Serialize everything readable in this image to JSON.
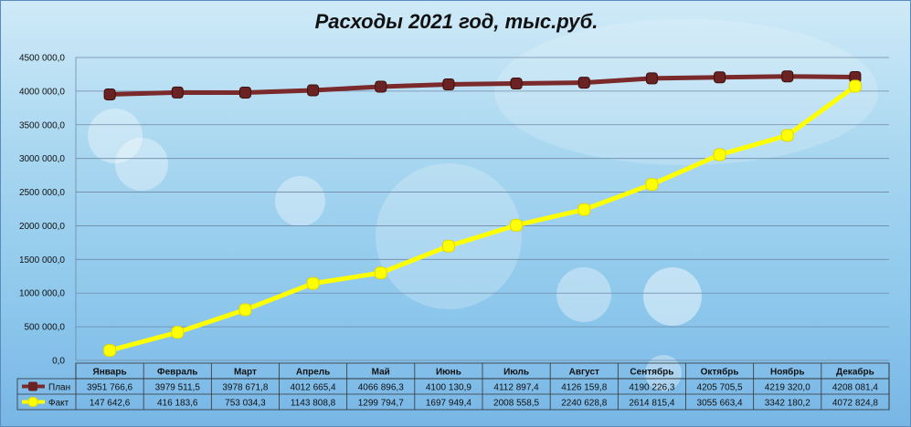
{
  "chart_data": {
    "type": "line",
    "title": "Расходы 2021 год, тыс.руб.",
    "ylim": [
      0,
      4500000
    ],
    "yticks": [
      "0,0",
      "500 000,0",
      "1000 000,0",
      "1500 000,0",
      "2000 000,0",
      "2500 000,0",
      "3000 000,0",
      "3500 000,0",
      "4000 000,0",
      "4500 000,0"
    ],
    "grid": true,
    "legend": "data-table",
    "categories": [
      "Январь",
      "Февраль",
      "Март",
      "Апрель",
      "Май",
      "Июнь",
      "Июль",
      "Август",
      "Сентябрь",
      "Октябрь",
      "Ноябрь",
      "Декабрь"
    ],
    "series": [
      {
        "name": "План",
        "color": "#7a2a2a",
        "values": [
          3951766.6,
          3979511.5,
          3978671.8,
          4012665.4,
          4066896.3,
          4100130.9,
          4112897.4,
          4126159.8,
          4190226.3,
          4205705.5,
          4219320.0,
          4208081.4
        ],
        "labels": [
          "3951 766,6",
          "3979 511,5",
          "3978 671,8",
          "4012 665,4",
          "4066 896,3",
          "4100 130,9",
          "4112 897,4",
          "4126 159,8",
          "4190 226,3",
          "4205 705,5",
          "4219 320,0",
          "4208 081,4"
        ]
      },
      {
        "name": "Факт",
        "color": "#ffff00",
        "values": [
          147642.6,
          416183.6,
          753034.3,
          1143808.8,
          1299794.7,
          1697949.4,
          2008558.5,
          2240628.8,
          2614815.4,
          3055663.4,
          3342180.2,
          4072824.8
        ],
        "labels": [
          "147 642,6",
          "416 183,6",
          "753 034,3",
          "1143 808,8",
          "1299 794,7",
          "1697 949,4",
          "2008 558,5",
          "2240 628,8",
          "2614 815,4",
          "3055 663,4",
          "3342 180,2",
          "4072 824,8"
        ]
      }
    ]
  }
}
